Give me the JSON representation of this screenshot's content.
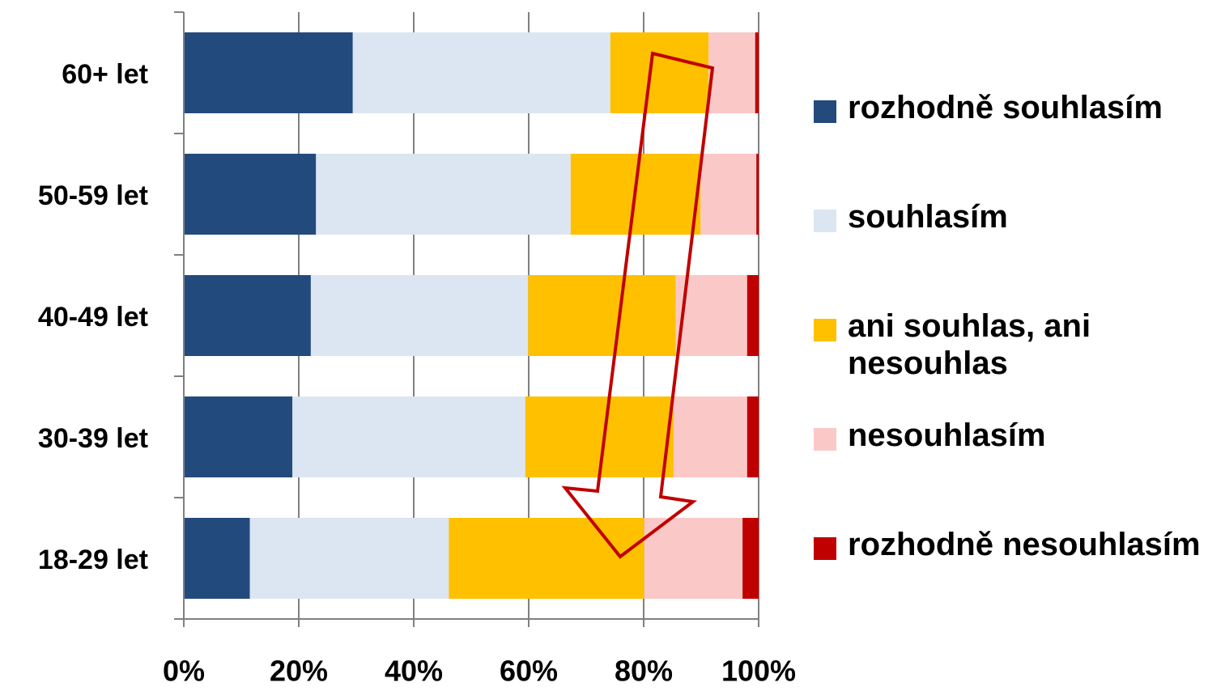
{
  "chart_data": {
    "type": "stacked_barh",
    "categories": [
      "60+ let",
      "50-59 let",
      "40-49 let",
      "30-39 let",
      "18-29 let"
    ],
    "series": [
      {
        "name": "rozhodně souhlasím",
        "color": "#234a7d",
        "values": [
          29.4,
          23.0,
          22.1,
          18.9,
          11.5
        ]
      },
      {
        "name": "souhlasím",
        "color": "#dce6f2",
        "values": [
          44.8,
          44.3,
          37.8,
          40.5,
          34.6
        ]
      },
      {
        "name": "ani souhlas, ani nesouhlas",
        "color": "#ffc000",
        "values": [
          17.1,
          22.6,
          25.7,
          25.8,
          34.0
        ]
      },
      {
        "name": "nesouhlasím",
        "color": "#fbc8c8",
        "values": [
          8.1,
          9.7,
          12.4,
          12.8,
          17.1
        ]
      },
      {
        "name": "rozhodně nesouhlasím",
        "color": "#c00000",
        "values": [
          0.6,
          0.4,
          2.0,
          2.0,
          2.8
        ]
      }
    ],
    "xlim": [
      0,
      100
    ],
    "xticks": [
      {
        "value": 0,
        "label": "0%"
      },
      {
        "value": 20,
        "label": "20%"
      },
      {
        "value": 40,
        "label": "40%"
      },
      {
        "value": 60,
        "label": "60%"
      },
      {
        "value": 80,
        "label": "80%"
      },
      {
        "value": 100,
        "label": "100%"
      }
    ],
    "grid": true,
    "legend": "right"
  }
}
